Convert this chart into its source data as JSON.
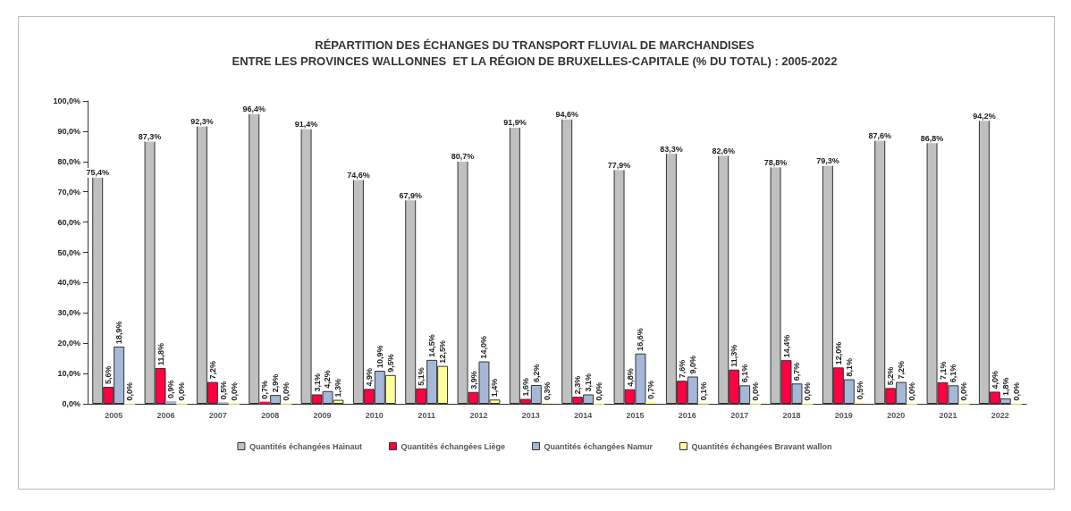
{
  "chart_data": {
    "type": "bar",
    "title": "RÉPARTITION DES ÉCHANGES DU TRANSPORT FLUVIAL DE MARCHANDISES\nENTRE LES PROVINCES WALLONNES  ET LA RÉGION DE BRUXELLES-CAPITALE (% DU TOTAL) : 2005-2022",
    "categories": [
      "2005",
      "2006",
      "2007",
      "2008",
      "2009",
      "2010",
      "2011",
      "2012",
      "2013",
      "2014",
      "2015",
      "2016",
      "2017",
      "2018",
      "2019",
      "2020",
      "2021",
      "2022"
    ],
    "series": [
      {
        "name": "Quantités échangées Hainaut",
        "color": "#c0c0c0",
        "values": [
          75.4,
          87.3,
          92.3,
          96.4,
          91.4,
          74.6,
          67.9,
          80.7,
          91.9,
          94.6,
          77.9,
          83.3,
          82.6,
          78.8,
          79.3,
          87.6,
          86.8,
          94.2
        ],
        "value_labels": [
          "75,4%",
          "87,3%",
          "92,3%",
          "96,4%",
          "91,4%",
          "74,6%",
          "67,9%",
          "80,7%",
          "91,9%",
          "94,6%",
          "77,9%",
          "83,3%",
          "82,6%",
          "78,8%",
          "79,3%",
          "87,6%",
          "86,8%",
          "94,2%"
        ]
      },
      {
        "name": "Quantités échangées Liège",
        "color": "#ff0040",
        "values": [
          5.6,
          11.8,
          7.2,
          0.7,
          3.1,
          4.9,
          5.1,
          3.9,
          1.6,
          2.3,
          4.8,
          7.6,
          11.3,
          14.4,
          12.0,
          5.2,
          7.1,
          4.0
        ],
        "value_labels": [
          "5,6%",
          "11,8%",
          "7,2%",
          "0,7%",
          "3,1%",
          "4,9%",
          "5,1%",
          "3,9%",
          "1,6%",
          "2,3%",
          "4,8%",
          "7,6%",
          "11,3%",
          "14,4%",
          "12,0%",
          "5,2%",
          "7,1%",
          "4,0%"
        ]
      },
      {
        "name": "Quantités échangées Namur",
        "color": "#a6b8d8",
        "values": [
          18.9,
          0.9,
          0.5,
          2.9,
          4.2,
          10.9,
          14.5,
          14.0,
          6.2,
          3.1,
          16.6,
          9.0,
          6.1,
          6.7,
          8.1,
          7.2,
          6.1,
          1.8
        ],
        "value_labels": [
          "18,9%",
          "0,9%",
          "0,5%",
          "2,9%",
          "4,2%",
          "10,9%",
          "14,5%",
          "14,0%",
          "6,2%",
          "3,1%",
          "16,6%",
          "9,0%",
          "6,1%",
          "6,7%",
          "8,1%",
          "7,2%",
          "6,1%",
          "1,8%"
        ]
      },
      {
        "name": "Quantités échangées Bravant wallon",
        "color": "#ffff99",
        "values": [
          0.0,
          0.0,
          0.0,
          0.0,
          1.3,
          9.5,
          12.5,
          1.4,
          0.3,
          0.0,
          0.7,
          0.1,
          0.0,
          0.0,
          0.5,
          0.0,
          0.0,
          0.0
        ],
        "value_labels": [
          "0,0%",
          "0,0%",
          "0,0%",
          "0,0%",
          "1,3%",
          "9,5%",
          "12,5%",
          "1,4%",
          "0,3%",
          "0,0%",
          "0,7%",
          "0,1%",
          "0,0%",
          "0,0%",
          "0,5%",
          "0,0%",
          "0,0%",
          "0,0%"
        ]
      }
    ],
    "ylim": [
      0,
      100
    ],
    "yticks": [
      {
        "value": 0,
        "label": "0,0%"
      },
      {
        "value": 10,
        "label": "10,0%"
      },
      {
        "value": 20,
        "label": "20,0%"
      },
      {
        "value": 30,
        "label": "30,0%"
      },
      {
        "value": 40,
        "label": "40,0%"
      },
      {
        "value": 50,
        "label": "50,0%"
      },
      {
        "value": 60,
        "label": "60,0%"
      },
      {
        "value": 70,
        "label": "70,0%"
      },
      {
        "value": 80,
        "label": "80,0%"
      },
      {
        "value": 90,
        "label": "90,0%"
      },
      {
        "value": 100,
        "label": "100,0%"
      }
    ],
    "grid": false,
    "legend": "bottom"
  }
}
